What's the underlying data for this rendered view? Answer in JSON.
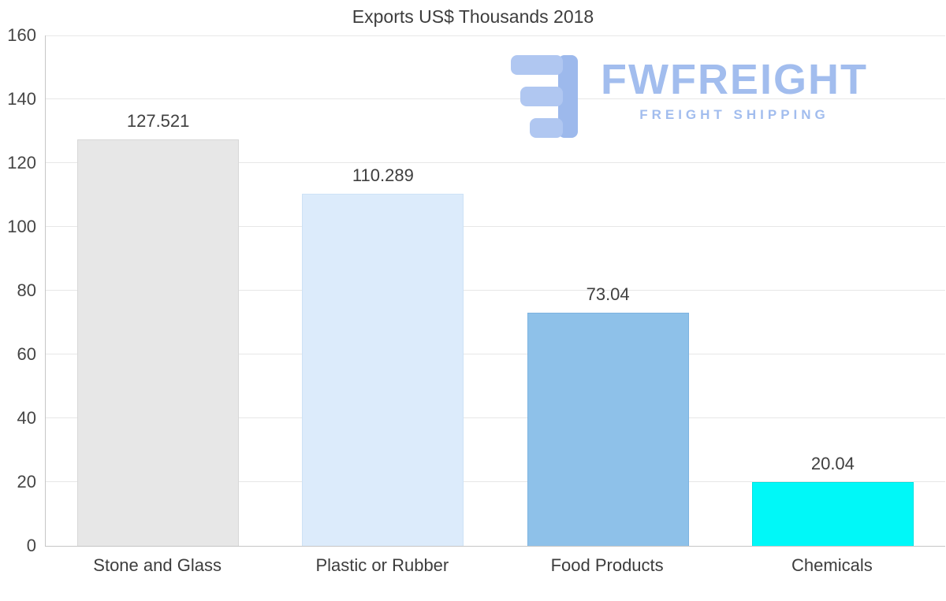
{
  "logo": {
    "icon": "fwfreight-mark",
    "name": "FWFREIGHT",
    "tagline": "FREIGHT SHIPPING",
    "color": "#a2bdee"
  },
  "chart_data": {
    "type": "bar",
    "title": "Exports US$ Thousands 2018",
    "categories": [
      "Stone and Glass",
      "Plastic or Rubber",
      "Food Products",
      "Chemicals"
    ],
    "values": [
      127.521,
      110.289,
      73.04,
      20.04
    ],
    "value_labels": [
      "127.521",
      "110.289",
      "73.04",
      "20.04"
    ],
    "bar_colors": [
      "#e7e7e7",
      "#dcebfb",
      "#8ec1e9",
      "#00f8f8"
    ],
    "bar_border_colors": [
      "#d8d8d8",
      "#cde2f6",
      "#7db3e0",
      "#00e2e2"
    ],
    "xlabel": "",
    "ylabel": "",
    "ylim": [
      0,
      160
    ],
    "yticks": [
      0,
      20,
      40,
      60,
      80,
      100,
      120,
      140,
      160
    ],
    "grid": "horizontal",
    "legend": "none"
  }
}
